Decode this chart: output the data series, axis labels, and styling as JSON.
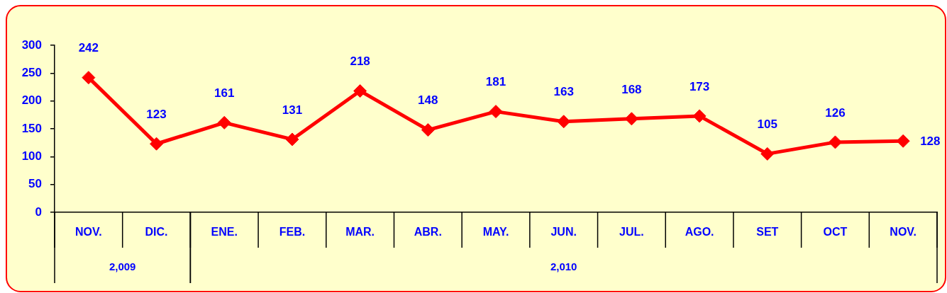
{
  "chart_data": {
    "type": "line",
    "categories": [
      "NOV.",
      "DIC.",
      "ENE.",
      "FEB.",
      "MAR.",
      "ABR.",
      "MAY.",
      "JUN.",
      "JUL.",
      "AGO.",
      "SET",
      "OCT",
      "NOV."
    ],
    "series": [
      {
        "color": "#ff0000",
        "values": [
          242,
          123,
          161,
          131,
          218,
          148,
          181,
          163,
          168,
          173,
          105,
          126,
          128
        ]
      }
    ],
    "ylim": [
      0,
      300
    ],
    "yticks": [
      0,
      50,
      100,
      150,
      200,
      250,
      300
    ],
    "grid": false,
    "legend": false,
    "marker": "diamond",
    "line_style": "solid",
    "data_labels": true,
    "annotations": [
      "2,009",
      "2,010"
    ]
  }
}
